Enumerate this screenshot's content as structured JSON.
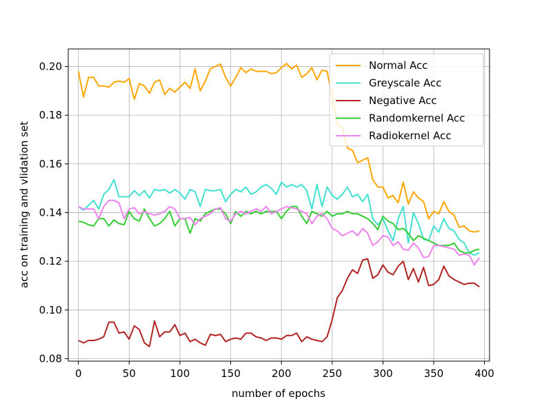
{
  "chart_data": {
    "type": "line",
    "title": "",
    "xlabel": "number of epochs",
    "ylabel": "acc on training and vlidation set",
    "xlim": [
      -10,
      405
    ],
    "ylim": [
      0.079,
      0.2072
    ],
    "xticks": [
      0,
      50,
      100,
      150,
      200,
      250,
      300,
      350,
      400
    ],
    "xtick_labels": [
      "0",
      "50",
      "100",
      "150",
      "200",
      "250",
      "300",
      "350",
      "400"
    ],
    "yticks": [
      0.08,
      0.1,
      0.12,
      0.14,
      0.16,
      0.18,
      0.2
    ],
    "ytick_labels": [
      "0.08",
      "0.10",
      "0.12",
      "0.14",
      "0.16",
      "0.18",
      "0.20"
    ],
    "grid": true,
    "legend_position": "top-right",
    "x": [
      0,
      5,
      10,
      15,
      20,
      25,
      30,
      35,
      40,
      45,
      50,
      55,
      60,
      65,
      70,
      75,
      80,
      85,
      90,
      95,
      100,
      105,
      110,
      115,
      120,
      125,
      130,
      135,
      140,
      145,
      150,
      155,
      160,
      165,
      170,
      175,
      180,
      185,
      190,
      195,
      200,
      205,
      210,
      215,
      220,
      225,
      230,
      235,
      240,
      245,
      250,
      255,
      260,
      265,
      270,
      275,
      280,
      285,
      290,
      295,
      300,
      305,
      310,
      315,
      320,
      325,
      330,
      335,
      340,
      345,
      350,
      355,
      360,
      365,
      370,
      375,
      380,
      385,
      390,
      395
    ],
    "series": [
      {
        "name": "Normal Acc",
        "color": "#ffa500",
        "values": [
          0.198,
          0.1875,
          0.1955,
          0.1955,
          0.192,
          0.192,
          0.1915,
          0.1935,
          0.194,
          0.1935,
          0.195,
          0.1865,
          0.193,
          0.192,
          0.189,
          0.1935,
          0.1945,
          0.1885,
          0.191,
          0.1895,
          0.1915,
          0.1935,
          0.191,
          0.199,
          0.19,
          0.194,
          0.199,
          0.2,
          0.201,
          0.1955,
          0.192,
          0.1955,
          0.1995,
          0.1975,
          0.199,
          0.198,
          0.198,
          0.198,
          0.197,
          0.1975,
          0.1995,
          0.2012,
          0.199,
          0.2005,
          0.1955,
          0.197,
          0.1995,
          0.1945,
          0.1985,
          0.198,
          0.1875,
          0.176,
          0.175,
          0.1665,
          0.1655,
          0.1605,
          0.1615,
          0.1625,
          0.1535,
          0.1505,
          0.1505,
          0.146,
          0.147,
          0.144,
          0.1525,
          0.1435,
          0.1485,
          0.146,
          0.1445,
          0.1375,
          0.1405,
          0.1395,
          0.1445,
          0.1405,
          0.139,
          0.134,
          0.1345,
          0.1325,
          0.132,
          0.1325
        ]
      },
      {
        "name": "Greyscale Acc",
        "color": "#40e0d0",
        "values": [
          0.1425,
          0.141,
          0.143,
          0.145,
          0.1415,
          0.1475,
          0.1495,
          0.1535,
          0.1465,
          0.1465,
          0.1465,
          0.149,
          0.147,
          0.149,
          0.146,
          0.1495,
          0.149,
          0.1495,
          0.148,
          0.1495,
          0.148,
          0.1455,
          0.1495,
          0.1485,
          0.1425,
          0.1495,
          0.149,
          0.149,
          0.1495,
          0.1445,
          0.1475,
          0.1495,
          0.1485,
          0.1505,
          0.1475,
          0.1485,
          0.1505,
          0.1515,
          0.15,
          0.1475,
          0.1525,
          0.1505,
          0.1515,
          0.1505,
          0.1515,
          0.149,
          0.1415,
          0.1515,
          0.1425,
          0.1505,
          0.147,
          0.1455,
          0.1475,
          0.1505,
          0.1465,
          0.1475,
          0.1445,
          0.1475,
          0.1375,
          0.135,
          0.1375,
          0.1325,
          0.1285,
          0.1375,
          0.1425,
          0.1275,
          0.14,
          0.1355,
          0.129,
          0.1285,
          0.1345,
          0.132,
          0.1375,
          0.1335,
          0.1325,
          0.129,
          0.1275,
          0.1235,
          0.1225,
          0.1235
        ]
      },
      {
        "name": "Negative Acc",
        "color": "#b22222",
        "values": [
          0.0875,
          0.0865,
          0.0875,
          0.0875,
          0.088,
          0.089,
          0.095,
          0.095,
          0.0905,
          0.091,
          0.088,
          0.0935,
          0.092,
          0.0865,
          0.085,
          0.0955,
          0.089,
          0.091,
          0.091,
          0.094,
          0.0895,
          0.0905,
          0.087,
          0.088,
          0.0865,
          0.0855,
          0.09,
          0.0895,
          0.09,
          0.087,
          0.088,
          0.0885,
          0.088,
          0.0905,
          0.0905,
          0.089,
          0.0885,
          0.0875,
          0.0885,
          0.0885,
          0.088,
          0.0895,
          0.0895,
          0.0905,
          0.087,
          0.089,
          0.088,
          0.0875,
          0.087,
          0.089,
          0.096,
          0.105,
          0.108,
          0.113,
          0.1165,
          0.115,
          0.1205,
          0.121,
          0.113,
          0.1145,
          0.1185,
          0.1155,
          0.1145,
          0.118,
          0.12,
          0.1125,
          0.117,
          0.1115,
          0.1175,
          0.11,
          0.1105,
          0.1125,
          0.118,
          0.114,
          0.1125,
          0.1115,
          0.1105,
          0.111,
          0.111,
          0.1095
        ]
      },
      {
        "name": "Randomkernel Acc",
        "color": "#32cd32",
        "values": [
          0.1365,
          0.136,
          0.135,
          0.1345,
          0.1375,
          0.1375,
          0.1345,
          0.137,
          0.1355,
          0.135,
          0.1405,
          0.1375,
          0.1365,
          0.1415,
          0.1375,
          0.1345,
          0.1355,
          0.1375,
          0.1405,
          0.1345,
          0.1375,
          0.1375,
          0.1315,
          0.1375,
          0.1365,
          0.1395,
          0.1405,
          0.1415,
          0.1415,
          0.1395,
          0.1355,
          0.1405,
          0.1385,
          0.1405,
          0.1395,
          0.1405,
          0.1395,
          0.1405,
          0.1405,
          0.1405,
          0.1375,
          0.1405,
          0.1425,
          0.1425,
          0.1385,
          0.1355,
          0.1405,
          0.1395,
          0.1385,
          0.1405,
          0.1385,
          0.1395,
          0.1395,
          0.1405,
          0.1395,
          0.1395,
          0.1385,
          0.1375,
          0.1355,
          0.133,
          0.1385,
          0.1365,
          0.1355,
          0.133,
          0.1335,
          0.1315,
          0.1285,
          0.1305,
          0.1295,
          0.1285,
          0.1275,
          0.1265,
          0.1265,
          0.1265,
          0.1275,
          0.1245,
          0.1235,
          0.1235,
          0.1245,
          0.125
        ]
      },
      {
        "name": "Radiokernel Acc",
        "color": "#ee82ee",
        "values": [
          0.1425,
          0.1415,
          0.1415,
          0.1415,
          0.1375,
          0.1425,
          0.145,
          0.145,
          0.144,
          0.1375,
          0.1415,
          0.142,
          0.1395,
          0.1405,
          0.1395,
          0.139,
          0.1395,
          0.1405,
          0.1425,
          0.1415,
          0.1375,
          0.1375,
          0.138,
          0.135,
          0.1375,
          0.1385,
          0.1395,
          0.1415,
          0.142,
          0.1375,
          0.1365,
          0.1395,
          0.1405,
          0.1395,
          0.1405,
          0.1415,
          0.1405,
          0.1425,
          0.1395,
          0.1405,
          0.1415,
          0.1425,
          0.142,
          0.1415,
          0.1405,
          0.1395,
          0.1355,
          0.1385,
          0.1395,
          0.1375,
          0.1335,
          0.1325,
          0.1305,
          0.1315,
          0.1325,
          0.1305,
          0.1335,
          0.1315,
          0.1265,
          0.128,
          0.1305,
          0.13,
          0.1265,
          0.128,
          0.125,
          0.1245,
          0.1275,
          0.1255,
          0.1215,
          0.122,
          0.1265,
          0.1265,
          0.126,
          0.1255,
          0.125,
          0.1225,
          0.123,
          0.1225,
          0.1185,
          0.1215
        ]
      }
    ]
  }
}
